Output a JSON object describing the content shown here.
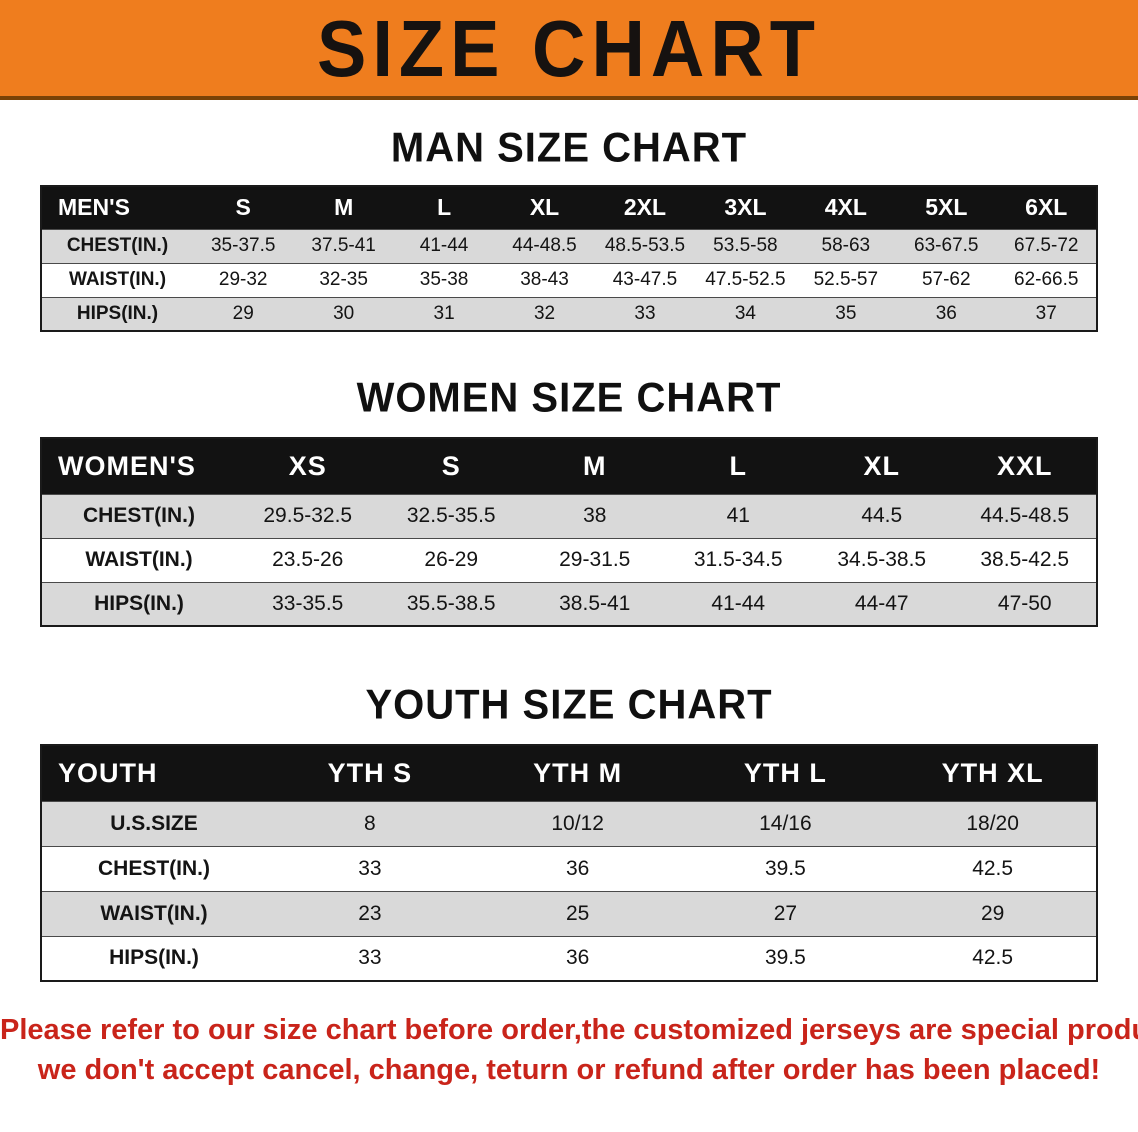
{
  "banner": {
    "title": "SIZE CHART",
    "bg_color": "#EF7D1E",
    "text_color": "#161210"
  },
  "sections": [
    {
      "heading": "MAN SIZE CHART",
      "table": {
        "header": [
          "MEN'S",
          "S",
          "M",
          "L",
          "XL",
          "2XL",
          "3XL",
          "4XL",
          "5XL",
          "6XL"
        ],
        "rows": [
          [
            "CHEST(IN.)",
            "35-37.5",
            "37.5-41",
            "41-44",
            "44-48.5",
            "48.5-53.5",
            "53.5-58",
            "58-63",
            "63-67.5",
            "67.5-72"
          ],
          [
            "WAIST(IN.)",
            "29-32",
            "32-35",
            "35-38",
            "38-43",
            "43-47.5",
            "47.5-52.5",
            "52.5-57",
            "57-62",
            "62-66.5"
          ],
          [
            "HIPS(IN.)",
            "29",
            "30",
            "31",
            "32",
            "33",
            "34",
            "35",
            "36",
            "37"
          ]
        ]
      }
    },
    {
      "heading": "WOMEN SIZE CHART",
      "table": {
        "header": [
          "WOMEN'S",
          "XS",
          "S",
          "M",
          "L",
          "XL",
          "XXL"
        ],
        "rows": [
          [
            "CHEST(IN.)",
            "29.5-32.5",
            "32.5-35.5",
            "38",
            "41",
            "44.5",
            "44.5-48.5"
          ],
          [
            "WAIST(IN.)",
            "23.5-26",
            "26-29",
            "29-31.5",
            "31.5-34.5",
            "34.5-38.5",
            "38.5-42.5"
          ],
          [
            "HIPS(IN.)",
            "33-35.5",
            "35.5-38.5",
            "38.5-41",
            "41-44",
            "44-47",
            "47-50"
          ]
        ]
      }
    },
    {
      "heading": "YOUTH SIZE CHART",
      "table": {
        "header": [
          "YOUTH",
          "YTH S",
          "YTH M",
          "YTH L",
          "YTH XL"
        ],
        "rows": [
          [
            "U.S.SIZE",
            "8",
            "10/12",
            "14/16",
            "18/20"
          ],
          [
            "CHEST(IN.)",
            "33",
            "36",
            "39.5",
            "42.5"
          ],
          [
            "WAIST(IN.)",
            "23",
            "25",
            "27",
            "29"
          ],
          [
            "HIPS(IN.)",
            "33",
            "36",
            "39.5",
            "42.5"
          ]
        ]
      }
    }
  ],
  "footer": {
    "line1": "Please refer to our size chart before order,the customized jerseys are special products,",
    "line2": "we don't accept cancel, change, teturn or refund after order has been placed!",
    "text_color": "#c9241a"
  }
}
